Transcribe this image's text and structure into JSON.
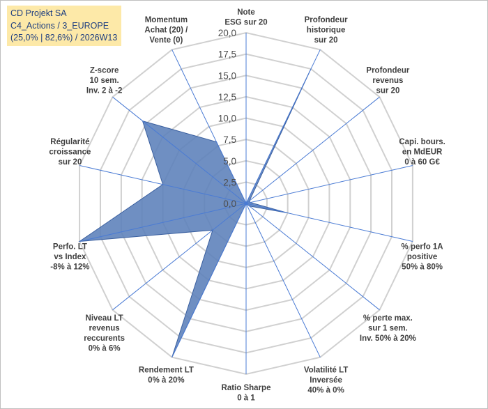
{
  "title": {
    "line1": "CD Projekt SA",
    "line2": "C4_Actions / 3_EUROPE",
    "line3": "(25,0% | 82,6%) / 2026W13"
  },
  "colors": {
    "fill": "#5b7fba",
    "stroke": "#3a5f9f",
    "spoke": "#4a7bd4",
    "grid": "#d0d0d0"
  },
  "chart_data": {
    "type": "radar",
    "rmax": 20,
    "ticks": [
      "0,0",
      "2,5",
      "5,0",
      "7,5",
      "10,0",
      "12,5",
      "15,0",
      "17,5",
      "20,0"
    ],
    "axes": [
      {
        "label": [
          "Note",
          "ESG sur 20"
        ],
        "value": 0
      },
      {
        "label": [
          "Profondeur",
          "historique",
          "sur 20"
        ],
        "value": 17.5
      },
      {
        "label": [
          "Profondeur",
          "revenus",
          "sur 20"
        ],
        "value": 0.5
      },
      {
        "label": [
          "Capi. bours.",
          "en MdEUR",
          "0 à 60 G€"
        ],
        "value": 0.5
      },
      {
        "label": [
          "% perfo 1A",
          "positive",
          "50% à 80%"
        ],
        "value": 5
      },
      {
        "label": [
          "% perte max.",
          "sur 1 sem.",
          "Inv. 50% à 20%"
        ],
        "value": 0.5
      },
      {
        "label": [
          "Volatilité LT",
          "Inversée",
          "40% à 0%"
        ],
        "value": 0
      },
      {
        "label": [
          "Ratio Sharpe",
          "0 à 1"
        ],
        "value": 0
      },
      {
        "label": [
          "Rendement LT",
          "0% à 20%"
        ],
        "value": 20
      },
      {
        "label": [
          "Niveau LT",
          "revenus",
          "reccurents",
          "0% à 6%"
        ],
        "value": 5
      },
      {
        "label": [
          "Perfo. LT",
          "vs Index",
          "-8% à 12%"
        ],
        "value": 20
      },
      {
        "label": [
          "Régularité",
          "croissance",
          "sur 20"
        ],
        "value": 10
      },
      {
        "label": [
          "Z-score",
          "10 sem.",
          "Inv. 2 à -2"
        ],
        "value": 15.5
      },
      {
        "label": [
          "Momentum",
          "Achat (20) /",
          "Vente (0)"
        ],
        "value": 8
      }
    ]
  }
}
